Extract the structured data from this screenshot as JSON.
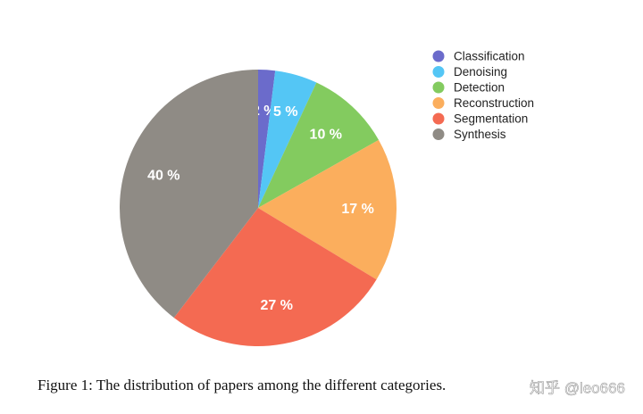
{
  "chart_data": {
    "type": "pie",
    "categories": [
      "Classification",
      "Denoising",
      "Detection",
      "Reconstruction",
      "Segmentation",
      "Synthesis"
    ],
    "values": [
      2,
      5,
      10,
      17,
      27,
      40
    ],
    "value_labels": [
      "2 %",
      "5 %",
      "10 %",
      "17 %",
      "27 %",
      "40 %"
    ],
    "colors": [
      "#6b6bcb",
      "#54c6f5",
      "#83cb5f",
      "#fbae5d",
      "#f46a52",
      "#8f8b85"
    ],
    "legend": "upper right"
  },
  "caption": "Figure 1: The distribution of papers among the different categories.",
  "watermark": "知乎 @leo666"
}
